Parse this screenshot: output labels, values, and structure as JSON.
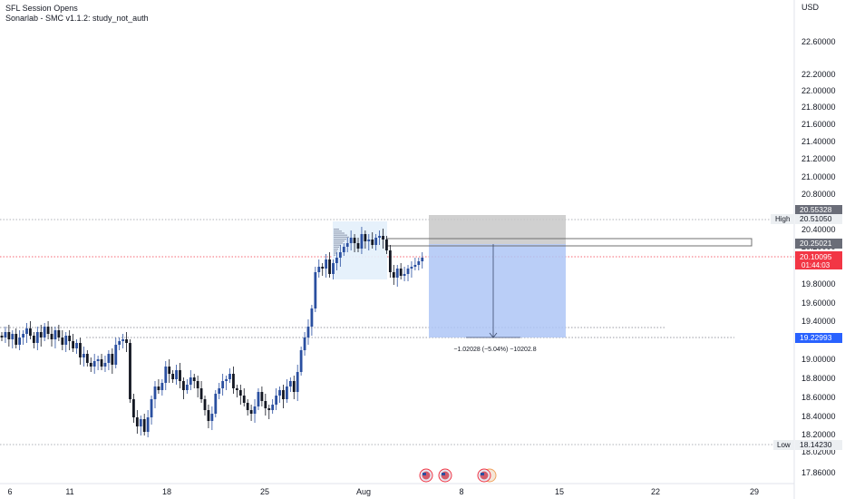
{
  "header": {
    "study1": "SFL Session Opens",
    "study2": "Sonarlab - SMC v1.1.2: study_not_auth"
  },
  "price_scale": {
    "currency": "USD",
    "ticks": [
      "22.60000",
      "22.20000",
      "22.00000",
      "21.80000",
      "21.60000",
      "21.40000",
      "21.20000",
      "21.00000",
      "20.80000",
      "20.40000",
      "20.20000",
      "19.80000",
      "19.60000",
      "19.40000",
      "19.00000",
      "18.80000",
      "18.60000",
      "18.40000",
      "18.20000",
      "18.02000",
      "17.86000"
    ]
  },
  "time_scale": {
    "labels": [
      "6",
      "11",
      "18",
      "25",
      "Aug",
      "8",
      "15",
      "22",
      "29"
    ]
  },
  "price_labels": {
    "high_price": "20.55328",
    "high_tag": "High",
    "high_value": "20.51050",
    "level_2025": "20.25021",
    "last_price": "20.10095",
    "countdown": "01:44:03",
    "target": "19.22993",
    "low_tag": "Low",
    "low_value": "18.14230"
  },
  "measure_label": "−1.02028 (−5.04%) −10202.8",
  "colors": {
    "up": "#2a4fa0",
    "down": "#131722",
    "last": "#f23645",
    "target": "#2962ff",
    "grey_tag": "#6a6d78"
  },
  "chart_data": {
    "type": "candlestick",
    "ylim": [
      17.76,
      22.74
    ],
    "x_axis": [
      "6",
      "11",
      "18",
      "25",
      "Aug",
      "8",
      "15",
      "22",
      "29"
    ],
    "reference_levels": {
      "high": 20.5105,
      "low": 18.1423,
      "last": 20.10095,
      "zone_top": 20.25021,
      "target": 19.22993,
      "high_box_top": 20.55328
    },
    "measure": {
      "from": 20.25021,
      "to": 19.22993,
      "change": -1.02028,
      "percent": -5.04
    }
  }
}
